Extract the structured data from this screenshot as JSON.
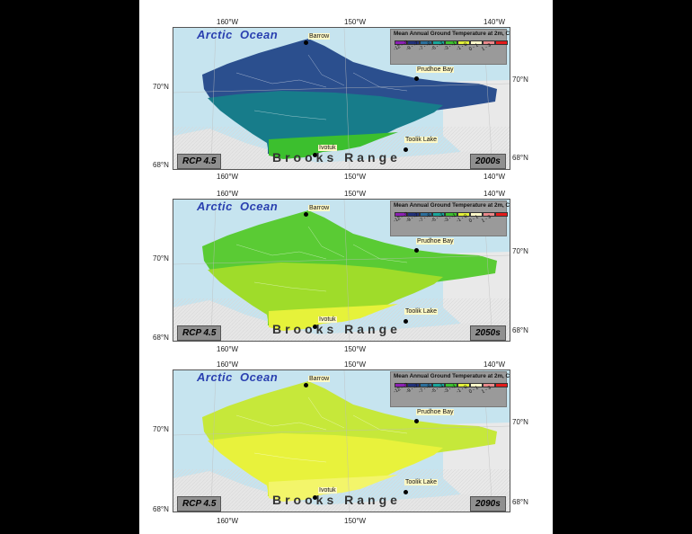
{
  "degree_labels": {
    "lon_160": "160°W",
    "lon_150": "150°W",
    "lon_140": "140°W",
    "lat_70": "70°N",
    "lat_68": "68°N"
  },
  "ocean_label": "Arctic Ocean",
  "legend": {
    "title": "Mean Annual Ground Temperature at 2m, C",
    "bins": [
      {
        "label": "-12 - -9",
        "color": "#8b1fb3"
      },
      {
        "label": "-9 - -7",
        "color": "#22317a"
      },
      {
        "label": "-7 - -5",
        "color": "#2a6e9b"
      },
      {
        "label": "-5 - -3",
        "color": "#17a59a"
      },
      {
        "label": "-3 - -1",
        "color": "#3cbf2e"
      },
      {
        "label": "-1 - 0",
        "color": "#e2f03a"
      },
      {
        "label": "0 - 1",
        "color": "#fff8c8"
      },
      {
        "label": "1 - 3",
        "color": "#e8888a"
      },
      {
        "label": "",
        "color": "#e31b1b"
      }
    ]
  },
  "places": {
    "barrow": "Barrow",
    "prudhoe": "Prudhoe Bay",
    "ivotuk": "Ivotuk",
    "toolik": "Toolik Lake"
  },
  "range_label": "Brooks Range",
  "panels": [
    {
      "scenario": "RCP 4.5",
      "decade": "2000s",
      "fill_primary": "#2b4f8e",
      "fill_secondary": "#177c8a",
      "fill_south": "#3cbf2e"
    },
    {
      "scenario": "RCP 4.5",
      "decade": "2050s",
      "fill_primary": "#5acb34",
      "fill_secondary": "#9fdc2a",
      "fill_south": "#e6f23a"
    },
    {
      "scenario": "RCP 4.5",
      "decade": "2090s",
      "fill_primary": "#c6e83a",
      "fill_secondary": "#e8f23c",
      "fill_south": "#f3f56a"
    }
  ]
}
